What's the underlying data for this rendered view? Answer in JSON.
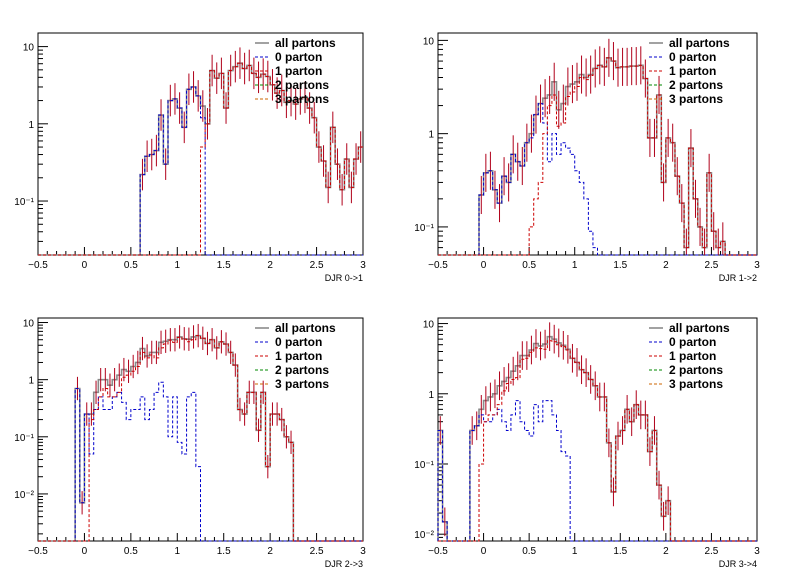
{
  "colors": {
    "all": "#8a8a8a",
    "p0": "#0000cc",
    "p1": "#cc0000",
    "p2": "#008800",
    "p3": "#cc6600",
    "errorbar": "#b0001a"
  },
  "legend_labels": [
    "all partons",
    "0 parton",
    "1 parton",
    "2 partons",
    "3 partons"
  ],
  "chart_data": [
    {
      "type": "histogram",
      "xlabel": "DJR 0->1",
      "xlim": [
        -0.5,
        3
      ],
      "ylim": [
        0.02,
        15
      ],
      "yscale": "log",
      "xticks": [
        -0.5,
        0,
        0.5,
        1,
        1.5,
        2,
        2.5,
        3
      ],
      "xtick_labels": [
        "−0.5",
        "0",
        "0.5",
        "1",
        "1.5",
        "2",
        "2.5",
        "3"
      ],
      "yticks": [
        0.1,
        1,
        10
      ],
      "ytick_labels": [
        "10⁻¹",
        "1",
        "10"
      ],
      "bin_width": 0.05,
      "bin_start": -0.5,
      "series": [
        {
          "name": "all partons",
          "key": "all",
          "values": [
            0,
            0,
            0,
            0,
            0,
            0,
            0,
            0,
            0,
            0,
            0,
            0,
            0,
            0,
            0,
            0,
            0,
            0,
            0,
            0,
            0,
            0,
            0.22,
            0.38,
            0.4,
            0.45,
            1.3,
            0.3,
            2,
            2.1,
            1.6,
            0.9,
            2.8,
            3,
            2.3,
            1.7,
            1,
            4.9,
            3.9,
            4.5,
            1.6,
            4.9,
            5.5,
            6.1,
            5.2,
            5.7,
            4.5,
            4,
            4.4,
            4.1,
            3.2,
            2.5,
            2.7,
            1.9,
            2,
            1.8,
            2.1,
            2.2,
            1.6,
            1.2,
            0.5,
            0.33,
            0.15,
            0.9,
            0.3,
            0.14,
            0.35,
            0.15,
            0.35,
            0.5
          ]
        },
        {
          "name": "0 parton",
          "key": "p0",
          "values": [
            0,
            0,
            0,
            0,
            0,
            0,
            0,
            0,
            0,
            0,
            0,
            0,
            0,
            0,
            0,
            0,
            0,
            0,
            0,
            0,
            0,
            0,
            0.22,
            0.38,
            0.4,
            0.45,
            1.3,
            0.3,
            2,
            2.1,
            1.6,
            0.9,
            2.8,
            3,
            2.3,
            1.2,
            0,
            0,
            0,
            0,
            0,
            0,
            0,
            0,
            0,
            0,
            0,
            0,
            0,
            0,
            0,
            0,
            0,
            0,
            0,
            0,
            0,
            0,
            0,
            0,
            0,
            0,
            0,
            0,
            0,
            0,
            0,
            0,
            0,
            0
          ]
        },
        {
          "name": "1 parton",
          "key": "p1",
          "values": [
            0,
            0,
            0,
            0,
            0,
            0,
            0,
            0,
            0,
            0,
            0,
            0,
            0,
            0,
            0,
            0,
            0,
            0,
            0,
            0,
            0,
            0,
            0,
            0,
            0,
            0,
            0,
            0,
            0,
            0,
            0,
            0,
            0,
            0,
            0,
            0.5,
            1,
            4.9,
            3.9,
            4.5,
            1.6,
            4.9,
            5.5,
            6.1,
            5.2,
            5.7,
            4.5,
            4,
            4.4,
            4.1,
            3.2,
            2.5,
            2.7,
            1.9,
            2,
            1.8,
            2.1,
            2.2,
            1.6,
            1.2,
            0.5,
            0.33,
            0.15,
            0.9,
            0.3,
            0.14,
            0.35,
            0.15,
            0.35,
            0.5
          ]
        }
      ]
    },
    {
      "type": "histogram",
      "xlabel": "DJR 1->2",
      "xlim": [
        -0.5,
        3
      ],
      "ylim": [
        0.05,
        12
      ],
      "yscale": "log",
      "xticks": [
        -0.5,
        0,
        0.5,
        1,
        1.5,
        2,
        2.5,
        3
      ],
      "xtick_labels": [
        "−0.5",
        "0",
        "0.5",
        "1",
        "1.5",
        "2",
        "2.5",
        "3"
      ],
      "yticks": [
        0.1,
        1,
        10
      ],
      "ytick_labels": [
        "10⁻¹",
        "1",
        "10"
      ],
      "bin_width": 0.05,
      "bin_start": -0.5,
      "series": [
        {
          "name": "all partons",
          "key": "all",
          "values": [
            0,
            0,
            0,
            0,
            0,
            0,
            0,
            0,
            0,
            0.22,
            0.38,
            0.4,
            0.25,
            0.18,
            0.35,
            0.3,
            0.6,
            0.5,
            0.45,
            0.8,
            1,
            1.6,
            2.1,
            2.4,
            2.6,
            3.6,
            1.8,
            2.1,
            3.2,
            3.4,
            3.6,
            4.3,
            4,
            4.3,
            5,
            5.4,
            5.2,
            6.5,
            6,
            5.1,
            5.2,
            5.2,
            5.3,
            5.3,
            5.4,
            3.9,
            0.9,
            0.9,
            2.6,
            0.3,
            0.9,
            0.8,
            0.35,
            0.18,
            0.06,
            0.7,
            0.2,
            0.1,
            0.06,
            0.38,
            0.09,
            0.06,
            0.07,
            0,
            0,
            0,
            0,
            0,
            0,
            0
          ]
        },
        {
          "name": "0 parton",
          "key": "p0",
          "values": [
            0,
            0,
            0,
            0,
            0,
            0,
            0,
            0,
            0,
            0.22,
            0.38,
            0.4,
            0.25,
            0.18,
            0.35,
            0.3,
            0.6,
            0.5,
            0.45,
            0.8,
            0.9,
            1.6,
            2.1,
            1.3,
            0.5,
            1,
            0.6,
            0.8,
            0.7,
            0.6,
            0.4,
            0.3,
            0.2,
            0.09,
            0.06,
            0,
            0,
            0,
            0,
            0,
            0,
            0,
            0,
            0,
            0,
            0,
            0,
            0,
            0,
            0,
            0,
            0,
            0,
            0,
            0,
            0,
            0,
            0,
            0,
            0,
            0,
            0,
            0,
            0,
            0,
            0,
            0,
            0,
            0,
            0
          ]
        },
        {
          "name": "1 parton",
          "key": "p1",
          "values": [
            0,
            0,
            0,
            0,
            0,
            0,
            0,
            0,
            0,
            0,
            0,
            0,
            0,
            0,
            0,
            0,
            0,
            0,
            0,
            0,
            0.1,
            0.2,
            0.3,
            1,
            2,
            2.6,
            1.2,
            1.3,
            2.5,
            2.8,
            3.2,
            4,
            3.8,
            4.2,
            5,
            5.4,
            5.2,
            6.5,
            6,
            5.1,
            5.2,
            5.2,
            5.3,
            5.3,
            5.4,
            3.9,
            0.9,
            0.9,
            2.6,
            0.3,
            0.9,
            0.8,
            0.35,
            0.18,
            0.06,
            0.7,
            0.2,
            0.1,
            0.06,
            0.38,
            0.09,
            0.06,
            0.07,
            0,
            0,
            0,
            0,
            0,
            0,
            0
          ]
        }
      ]
    },
    {
      "type": "histogram",
      "xlabel": "DJR 2->3",
      "xlim": [
        -0.5,
        3
      ],
      "ylim": [
        0.0015,
        12
      ],
      "yscale": "log",
      "xticks": [
        -0.5,
        0,
        0.5,
        1,
        1.5,
        2,
        2.5,
        3
      ],
      "xtick_labels": [
        "−0.5",
        "0",
        "0.5",
        "1",
        "1.5",
        "2",
        "2.5",
        "3"
      ],
      "yticks": [
        0.01,
        0.1,
        1,
        10
      ],
      "ytick_labels": [
        "10⁻²",
        "10⁻¹",
        "1",
        "10"
      ],
      "bin_width": 0.05,
      "bin_start": -0.5,
      "series": [
        {
          "name": "all partons",
          "key": "all",
          "values": [
            0,
            0,
            0,
            0,
            0,
            0,
            0,
            0,
            0.7,
            0.007,
            0.25,
            0.25,
            0.6,
            1,
            1,
            0.8,
            1,
            1.2,
            1.5,
            1.4,
            1.7,
            2,
            3.5,
            2.6,
            3,
            3,
            4.5,
            4.7,
            5,
            5,
            5.6,
            5.2,
            5.1,
            5.6,
            5.9,
            5.3,
            4.3,
            5,
            3.6,
            4.6,
            4.2,
            3,
            1.8,
            0.3,
            0.25,
            0.6,
            0.6,
            0.13,
            0.6,
            0.03,
            0.25,
            0.25,
            0.2,
            0.1,
            0.08,
            0,
            0,
            0,
            0,
            0,
            0,
            0,
            0,
            0,
            0,
            0,
            0,
            0,
            0,
            0
          ]
        },
        {
          "name": "0 parton",
          "key": "p0",
          "values": [
            0,
            0,
            0,
            0,
            0,
            0,
            0,
            0,
            0.7,
            0.007,
            0.25,
            0.05,
            0.3,
            0.5,
            0.3,
            0.3,
            0.5,
            0.6,
            0.4,
            0.2,
            0.3,
            0.3,
            0.5,
            0.2,
            0.3,
            0.6,
            0.9,
            0.5,
            0.1,
            0.5,
            0.08,
            0.05,
            0.5,
            0.6,
            0.03,
            0,
            0,
            0,
            0,
            0,
            0,
            0,
            0,
            0,
            0,
            0,
            0,
            0,
            0,
            0,
            0,
            0,
            0,
            0,
            0,
            0,
            0,
            0,
            0,
            0,
            0,
            0,
            0,
            0,
            0,
            0,
            0,
            0,
            0,
            0
          ]
        },
        {
          "name": "1 parton",
          "key": "p1",
          "values": [
            0,
            0,
            0,
            0,
            0,
            0,
            0,
            0,
            0,
            0,
            0,
            0.2,
            0.3,
            0.5,
            0.7,
            0.5,
            0.5,
            0.6,
            1.1,
            1.2,
            1.4,
            1.7,
            3,
            2.4,
            2.7,
            2.4,
            3.6,
            4.2,
            4.9,
            4.5,
            5.5,
            5.1,
            4.6,
            5,
            5.9,
            5.3,
            4.3,
            5,
            3.6,
            4.6,
            4.2,
            3,
            1.8,
            0.3,
            0.25,
            0.6,
            0.6,
            0.13,
            0.6,
            0.03,
            0.25,
            0.25,
            0.2,
            0.1,
            0.08,
            0,
            0,
            0,
            0,
            0,
            0,
            0,
            0,
            0,
            0,
            0,
            0,
            0,
            0,
            0
          ]
        }
      ]
    },
    {
      "type": "histogram",
      "xlabel": "DJR 3->4",
      "xlim": [
        -0.5,
        3
      ],
      "ylim": [
        0.008,
        12
      ],
      "yscale": "log",
      "xticks": [
        -0.5,
        0,
        0.5,
        1,
        1.5,
        2,
        2.5,
        3
      ],
      "xtick_labels": [
        "−0.5",
        "0",
        "0.5",
        "1",
        "1.5",
        "2",
        "2.5",
        "3"
      ],
      "yticks": [
        0.01,
        0.1,
        1,
        10
      ],
      "ytick_labels": [
        "10⁻²",
        "10⁻¹",
        "1",
        "10"
      ],
      "bin_width": 0.05,
      "bin_start": -0.5,
      "series": [
        {
          "name": "all partons",
          "key": "all",
          "values": [
            0.3,
            0.015,
            0,
            0,
            0,
            0,
            0,
            0.3,
            0.35,
            0.6,
            0.8,
            0.9,
            1,
            1.3,
            1.5,
            1.7,
            2.1,
            2.5,
            3.5,
            3.5,
            4.2,
            5.2,
            4.8,
            5.1,
            6.5,
            6,
            5.3,
            4.9,
            4.3,
            3.2,
            2.8,
            2.2,
            2,
            1.6,
            1.3,
            0.9,
            0.9,
            0.2,
            0.04,
            0.25,
            0.3,
            0.6,
            0.4,
            0.7,
            0.5,
            0.5,
            0.15,
            0.3,
            0.05,
            0.018,
            0.03,
            0,
            0,
            0,
            0,
            0,
            0,
            0,
            0,
            0,
            0,
            0,
            0,
            0,
            0,
            0,
            0,
            0,
            0,
            0
          ]
        },
        {
          "name": "0 parton",
          "key": "p0",
          "values": [
            0.3,
            0.015,
            0,
            0,
            0,
            0,
            0,
            0.3,
            0.35,
            0.5,
            0.4,
            0.4,
            0.5,
            0.6,
            0.4,
            0.3,
            0.5,
            0.8,
            0.4,
            0.3,
            0.25,
            0.7,
            0.4,
            0.8,
            0.8,
            0.5,
            0.3,
            0.15,
            0.13,
            0,
            0,
            0,
            0,
            0,
            0,
            0,
            0,
            0,
            0,
            0,
            0,
            0,
            0,
            0,
            0,
            0,
            0,
            0,
            0,
            0,
            0,
            0,
            0,
            0,
            0,
            0,
            0,
            0,
            0,
            0,
            0,
            0,
            0,
            0,
            0,
            0,
            0,
            0,
            0,
            0
          ]
        },
        {
          "name": "1 parton",
          "key": "p1",
          "values": [
            0,
            0,
            0,
            0,
            0,
            0,
            0,
            0,
            0,
            0.1,
            0.4,
            0.5,
            0.5,
            0.7,
            1.1,
            1.4,
            1.6,
            1.7,
            3.1,
            3.2,
            3.9,
            4.5,
            4.4,
            4.3,
            5.7,
            5.5,
            5,
            4.7,
            4.2,
            3.2,
            2.8,
            2.2,
            2,
            1.6,
            1.3,
            0.9,
            0.9,
            0.2,
            0.04,
            0.25,
            0.3,
            0.6,
            0.4,
            0.7,
            0.5,
            0.5,
            0.15,
            0.3,
            0.05,
            0.018,
            0.03,
            0,
            0,
            0,
            0,
            0,
            0,
            0,
            0,
            0,
            0,
            0,
            0,
            0,
            0,
            0,
            0,
            0,
            0,
            0
          ]
        }
      ]
    }
  ]
}
